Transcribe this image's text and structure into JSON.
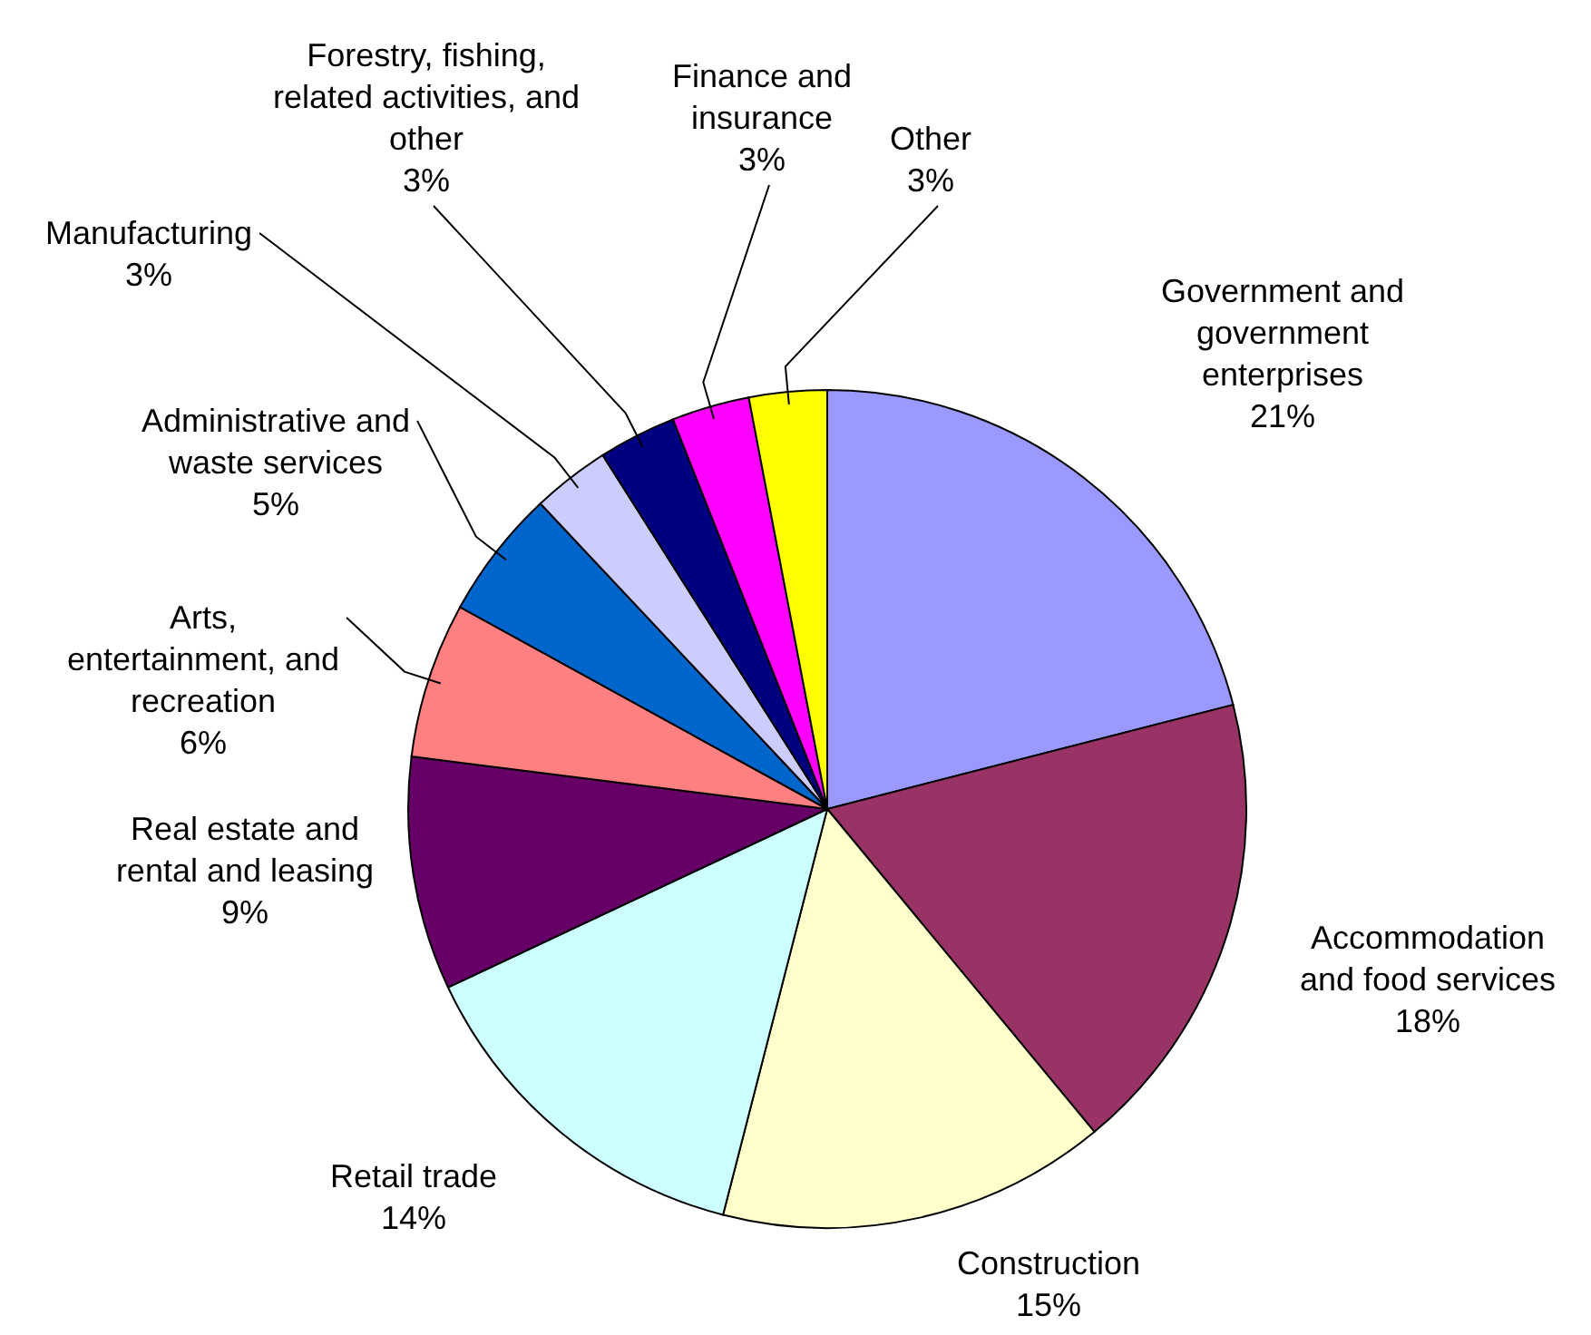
{
  "chart_data": {
    "type": "pie",
    "categories": [
      "Government and government enterprises",
      "Accommodation and food services",
      "Construction",
      "Retail trade",
      "Real estate and rental and leasing",
      "Arts, entertainment, and recreation",
      "Administrative and waste services",
      "Manufacturing",
      "Forestry, fishing, related activities, and other",
      "Finance and insurance",
      "Other"
    ],
    "values": [
      21,
      18,
      15,
      14,
      9,
      6,
      5,
      3,
      3,
      3,
      3
    ],
    "colors": [
      "#9999ff",
      "#993366",
      "#ffffcc",
      "#ccffff",
      "#660066",
      "#ff8080",
      "#0066cc",
      "#ccccff",
      "#000080",
      "#ff00ff",
      "#ffff00"
    ],
    "value_labels": [
      "21%",
      "18%",
      "15%",
      "14%",
      "9%",
      "6%",
      "5%",
      "3%",
      "3%",
      "3%",
      "3%"
    ]
  }
}
